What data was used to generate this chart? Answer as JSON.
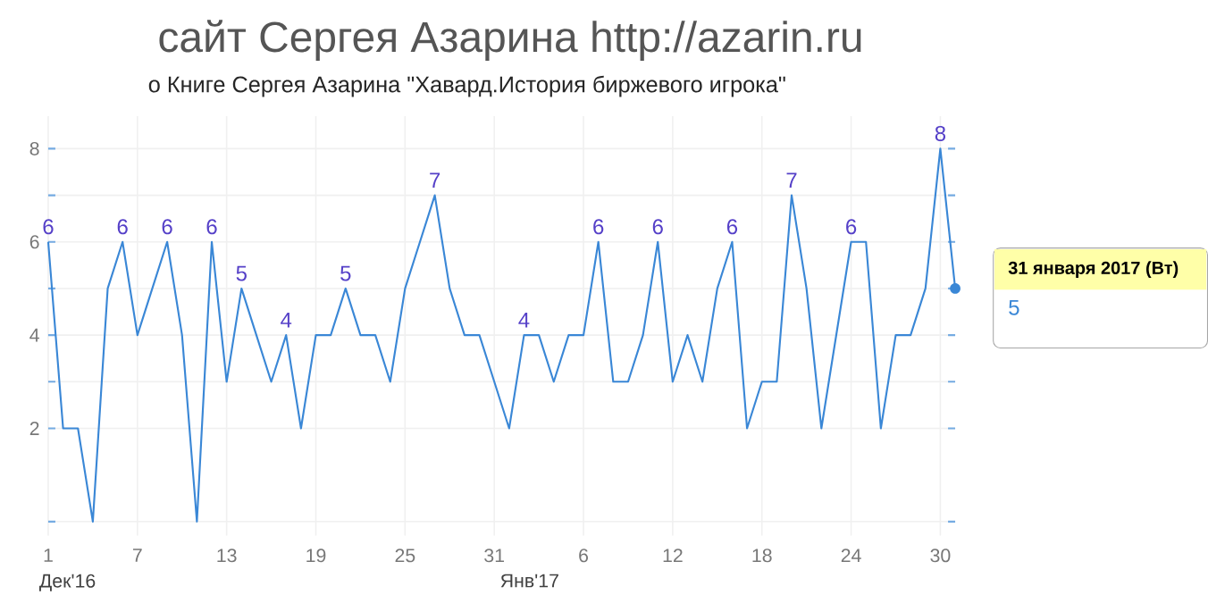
{
  "chart_data": {
    "type": "line",
    "title": "сайт Сергея Азарина http://azarin.ru",
    "subtitle": "о Книге Сергея Азарина \"Хавард.История биржевого игрока\"",
    "x": [
      "2016-12-01",
      "2016-12-02",
      "2016-12-03",
      "2016-12-04",
      "2016-12-05",
      "2016-12-06",
      "2016-12-07",
      "2016-12-08",
      "2016-12-09",
      "2016-12-10",
      "2016-12-11",
      "2016-12-12",
      "2016-12-13",
      "2016-12-14",
      "2016-12-15",
      "2016-12-16",
      "2016-12-17",
      "2016-12-18",
      "2016-12-19",
      "2016-12-20",
      "2016-12-21",
      "2016-12-22",
      "2016-12-23",
      "2016-12-24",
      "2016-12-25",
      "2016-12-26",
      "2016-12-27",
      "2016-12-28",
      "2016-12-29",
      "2016-12-30",
      "2016-12-31",
      "2017-01-01",
      "2017-01-02",
      "2017-01-03",
      "2017-01-04",
      "2017-01-05",
      "2017-01-06",
      "2017-01-07",
      "2017-01-08",
      "2017-01-09",
      "2017-01-10",
      "2017-01-11",
      "2017-01-12",
      "2017-01-13",
      "2017-01-14",
      "2017-01-15",
      "2017-01-16",
      "2017-01-17",
      "2017-01-18",
      "2017-01-19",
      "2017-01-20",
      "2017-01-21",
      "2017-01-22",
      "2017-01-23",
      "2017-01-24",
      "2017-01-25",
      "2017-01-26",
      "2017-01-27",
      "2017-01-28",
      "2017-01-29",
      "2017-01-30",
      "2017-01-31"
    ],
    "values": [
      6,
      2,
      2,
      0,
      5,
      6,
      4,
      5,
      6,
      4,
      0,
      6,
      3,
      5,
      4,
      3,
      4,
      2,
      4,
      4,
      5,
      4,
      4,
      3,
      5,
      6,
      7,
      5,
      4,
      4,
      3,
      2,
      4,
      4,
      3,
      4,
      4,
      6,
      3,
      3,
      4,
      6,
      3,
      4,
      3,
      5,
      6,
      2,
      3,
      3,
      7,
      5,
      2,
      4,
      6,
      6,
      2,
      4,
      4,
      5,
      8,
      5
    ],
    "value_labels": [
      "6",
      null,
      null,
      null,
      null,
      "6",
      null,
      null,
      "6",
      null,
      null,
      "6",
      null,
      "5",
      null,
      null,
      "4",
      null,
      null,
      null,
      "5",
      null,
      null,
      null,
      null,
      null,
      "7",
      null,
      null,
      null,
      null,
      null,
      "4",
      null,
      null,
      null,
      null,
      "6",
      null,
      null,
      null,
      "6",
      null,
      null,
      null,
      null,
      "6",
      null,
      null,
      null,
      "7",
      null,
      null,
      null,
      "6",
      null,
      null,
      null,
      null,
      null,
      "8",
      null
    ],
    "color": "#3a87d6",
    "xlim": [
      "2016-12-01",
      "2017-01-31"
    ],
    "xticks": [
      {
        "value": "2016-12-01",
        "label": "1"
      },
      {
        "value": "2016-12-07",
        "label": "7"
      },
      {
        "value": "2016-12-13",
        "label": "13"
      },
      {
        "value": "2016-12-19",
        "label": "19"
      },
      {
        "value": "2016-12-25",
        "label": "25"
      },
      {
        "value": "2016-12-31",
        "label": "31"
      },
      {
        "value": "2017-01-06",
        "label": "6"
      },
      {
        "value": "2017-01-12",
        "label": "12"
      },
      {
        "value": "2017-01-18",
        "label": "18"
      },
      {
        "value": "2017-01-24",
        "label": "24"
      },
      {
        "value": "2017-01-30",
        "label": "30"
      }
    ],
    "ylim": [
      -0.3,
      8.7
    ],
    "yticks": [
      {
        "value": 0,
        "label": null
      },
      2,
      {
        "value": 3,
        "label": null
      },
      4,
      {
        "value": 5,
        "label": null
      },
      6,
      {
        "value": 7,
        "label": null
      },
      8
    ],
    "grid": true,
    "annotations": [
      "Дек'16",
      "Янв'17",
      "31 января 2017 (Вт)",
      "5"
    ]
  }
}
